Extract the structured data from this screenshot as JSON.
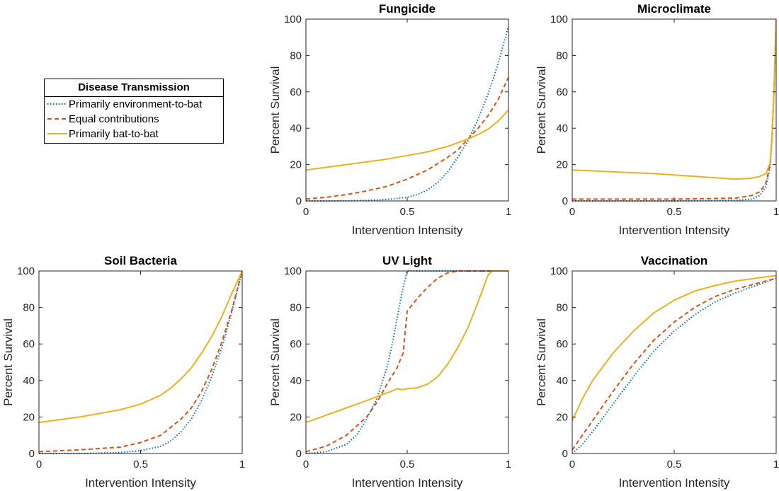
{
  "legend": {
    "title": "Disease Transmission",
    "items": [
      {
        "label": "Primarily environment-to-bat",
        "color": "#0072BD",
        "style": "dotted"
      },
      {
        "label": "Equal contributions",
        "color": "#D95319",
        "style": "dashed"
      },
      {
        "label": "Primarily bat-to-bat",
        "color": "#EDB120",
        "style": "solid"
      }
    ]
  },
  "chart_data": [
    {
      "type": "line",
      "title": "Fungicide",
      "xlabel": "Intervention Intensity",
      "ylabel": "Percent Survival",
      "xlim": [
        0,
        1
      ],
      "ylim": [
        0,
        100
      ],
      "xticks": [
        "0",
        "0.5",
        "1"
      ],
      "yticks": [
        "0",
        "20",
        "40",
        "60",
        "80",
        "100"
      ],
      "series": [
        {
          "name": "Primarily environment-to-bat",
          "x": [
            0,
            0.1,
            0.2,
            0.3,
            0.4,
            0.5,
            0.55,
            0.6,
            0.65,
            0.7,
            0.75,
            0.8,
            0.85,
            0.9,
            0.95,
            1.0
          ],
          "y": [
            0,
            0,
            0.1,
            0.3,
            0.8,
            2,
            3.5,
            6,
            10,
            16,
            24,
            33,
            45,
            59,
            76,
            96
          ]
        },
        {
          "name": "Equal contributions",
          "x": [
            0,
            0.1,
            0.2,
            0.3,
            0.4,
            0.5,
            0.6,
            0.7,
            0.75,
            0.8,
            0.85,
            0.9,
            0.95,
            1.0
          ],
          "y": [
            1,
            2,
            3.5,
            5.5,
            8,
            12,
            17,
            24,
            28,
            34,
            40,
            47,
            56,
            68
          ]
        },
        {
          "name": "Primarily bat-to-bat",
          "x": [
            0,
            0.1,
            0.2,
            0.3,
            0.4,
            0.5,
            0.6,
            0.7,
            0.8,
            0.85,
            0.9,
            0.95,
            1.0
          ],
          "y": [
            17,
            18.5,
            20,
            21.5,
            23,
            25,
            27,
            30,
            34,
            36.5,
            39.5,
            44,
            50
          ]
        }
      ]
    },
    {
      "type": "line",
      "title": "Microclimate",
      "xlabel": "Intervention Intensity",
      "ylabel": "Percent Survival",
      "xlim": [
        0,
        1
      ],
      "ylim": [
        0,
        100
      ],
      "xticks": [
        "0",
        "0.5",
        "1"
      ],
      "yticks": [
        "0",
        "20",
        "40",
        "60",
        "80",
        "100"
      ],
      "series": [
        {
          "name": "Primarily environment-to-bat",
          "x": [
            0,
            0.5,
            0.8,
            0.88,
            0.92,
            0.95,
            0.97,
            0.98,
            0.99,
            1.0
          ],
          "y": [
            0,
            0,
            0.3,
            1,
            3,
            8,
            18,
            35,
            62,
            100
          ]
        },
        {
          "name": "Equal contributions",
          "x": [
            0,
            0.5,
            0.8,
            0.88,
            0.92,
            0.95,
            0.97,
            0.98,
            0.99,
            1.0
          ],
          "y": [
            1,
            1,
            1.5,
            3,
            5,
            10,
            20,
            36,
            63,
            100
          ]
        },
        {
          "name": "Primarily bat-to-bat",
          "x": [
            0,
            0.2,
            0.4,
            0.6,
            0.8,
            0.88,
            0.92,
            0.95,
            0.97,
            0.98,
            0.99,
            1.0
          ],
          "y": [
            17,
            16,
            15,
            13.5,
            12,
            12.5,
            13.5,
            15,
            21,
            35,
            62,
            100
          ]
        }
      ]
    },
    {
      "type": "line",
      "title": "Soil Bacteria",
      "xlabel": "Intervention Intensity",
      "ylabel": "Percent Survival",
      "xlim": [
        0,
        1
      ],
      "ylim": [
        0,
        100
      ],
      "xticks": [
        "0",
        "0.5",
        "1"
      ],
      "yticks": [
        "0",
        "20",
        "40",
        "60",
        "80",
        "100"
      ],
      "series": [
        {
          "name": "Primarily environment-to-bat",
          "x": [
            0,
            0.2,
            0.4,
            0.5,
            0.6,
            0.65,
            0.7,
            0.75,
            0.8,
            0.85,
            0.9,
            0.95,
            1.0
          ],
          "y": [
            0,
            0,
            0.5,
            1.5,
            4,
            7,
            12,
            19,
            29,
            42,
            58,
            78,
            100
          ]
        },
        {
          "name": "Equal contributions",
          "x": [
            0,
            0.2,
            0.4,
            0.5,
            0.6,
            0.7,
            0.75,
            0.8,
            0.85,
            0.9,
            0.95,
            1.0
          ],
          "y": [
            1,
            2,
            3.5,
            6,
            10,
            19,
            25,
            34,
            46,
            61,
            79,
            100
          ]
        },
        {
          "name": "Primarily bat-to-bat",
          "x": [
            0,
            0.2,
            0.4,
            0.5,
            0.6,
            0.65,
            0.7,
            0.75,
            0.8,
            0.85,
            0.9,
            0.95,
            1.0
          ],
          "y": [
            17,
            20,
            24,
            27,
            32,
            36,
            41,
            47,
            55,
            64,
            75,
            88,
            100
          ]
        }
      ]
    },
    {
      "type": "line",
      "title": "UV Light",
      "xlabel": "Intervention Intensity",
      "ylabel": "Percent Survival",
      "xlim": [
        0,
        1
      ],
      "ylim": [
        0,
        100
      ],
      "xticks": [
        "0",
        "0.5",
        "1"
      ],
      "yticks": [
        "0",
        "20",
        "40",
        "60",
        "80",
        "100"
      ],
      "series": [
        {
          "name": "Primarily environment-to-bat",
          "x": [
            0,
            0.1,
            0.2,
            0.25,
            0.3,
            0.35,
            0.4,
            0.43,
            0.46,
            0.48,
            0.5,
            0.6,
            1.0
          ],
          "y": [
            0,
            1,
            5,
            10,
            19,
            30,
            47,
            62,
            80,
            91,
            100,
            100,
            100
          ]
        },
        {
          "name": "Equal contributions",
          "x": [
            0,
            0.1,
            0.2,
            0.3,
            0.35,
            0.4,
            0.45,
            0.48,
            0.5,
            0.55,
            0.6,
            0.65,
            0.7,
            0.75,
            0.8,
            1.0
          ],
          "y": [
            1,
            4,
            10,
            20,
            28,
            38,
            47,
            55,
            78,
            85,
            91,
            96,
            99,
            100,
            100,
            100
          ]
        },
        {
          "name": "Primarily bat-to-bat",
          "x": [
            0,
            0.1,
            0.2,
            0.3,
            0.37,
            0.42,
            0.45,
            0.48,
            0.5,
            0.55,
            0.6,
            0.65,
            0.7,
            0.75,
            0.8,
            0.85,
            0.88,
            0.9,
            0.92,
            1.0
          ],
          "y": [
            17,
            21,
            25,
            29,
            32,
            34,
            35.5,
            35,
            35.5,
            36,
            38,
            42,
            49,
            58,
            69,
            83,
            92,
            98,
            100,
            100
          ]
        }
      ]
    },
    {
      "type": "line",
      "title": "Vaccination",
      "xlabel": "Intervention Intensity",
      "ylabel": "Percent Survival",
      "xlim": [
        0,
        1
      ],
      "ylim": [
        0,
        100
      ],
      "xticks": [
        "0",
        "0.5",
        "1"
      ],
      "yticks": [
        "0",
        "20",
        "40",
        "60",
        "80",
        "100"
      ],
      "series": [
        {
          "name": "Primarily environment-to-bat",
          "x": [
            0,
            0.05,
            0.1,
            0.2,
            0.3,
            0.4,
            0.5,
            0.6,
            0.7,
            0.8,
            0.9,
            1.0
          ],
          "y": [
            0,
            5,
            12,
            27,
            42,
            56,
            67,
            76,
            83,
            88,
            92,
            96
          ]
        },
        {
          "name": "Equal contributions",
          "x": [
            0,
            0.05,
            0.1,
            0.2,
            0.3,
            0.4,
            0.5,
            0.6,
            0.7,
            0.8,
            0.9,
            1.0
          ],
          "y": [
            2,
            10,
            18,
            34,
            49,
            62,
            72,
            80,
            86,
            90,
            93,
            96
          ]
        },
        {
          "name": "Primarily bat-to-bat",
          "x": [
            0,
            0.05,
            0.1,
            0.2,
            0.3,
            0.4,
            0.5,
            0.6,
            0.7,
            0.8,
            0.9,
            1.0
          ],
          "y": [
            18,
            30,
            40,
            55,
            67,
            77,
            84,
            89,
            92,
            94.5,
            96,
            97.5
          ]
        }
      ]
    }
  ]
}
